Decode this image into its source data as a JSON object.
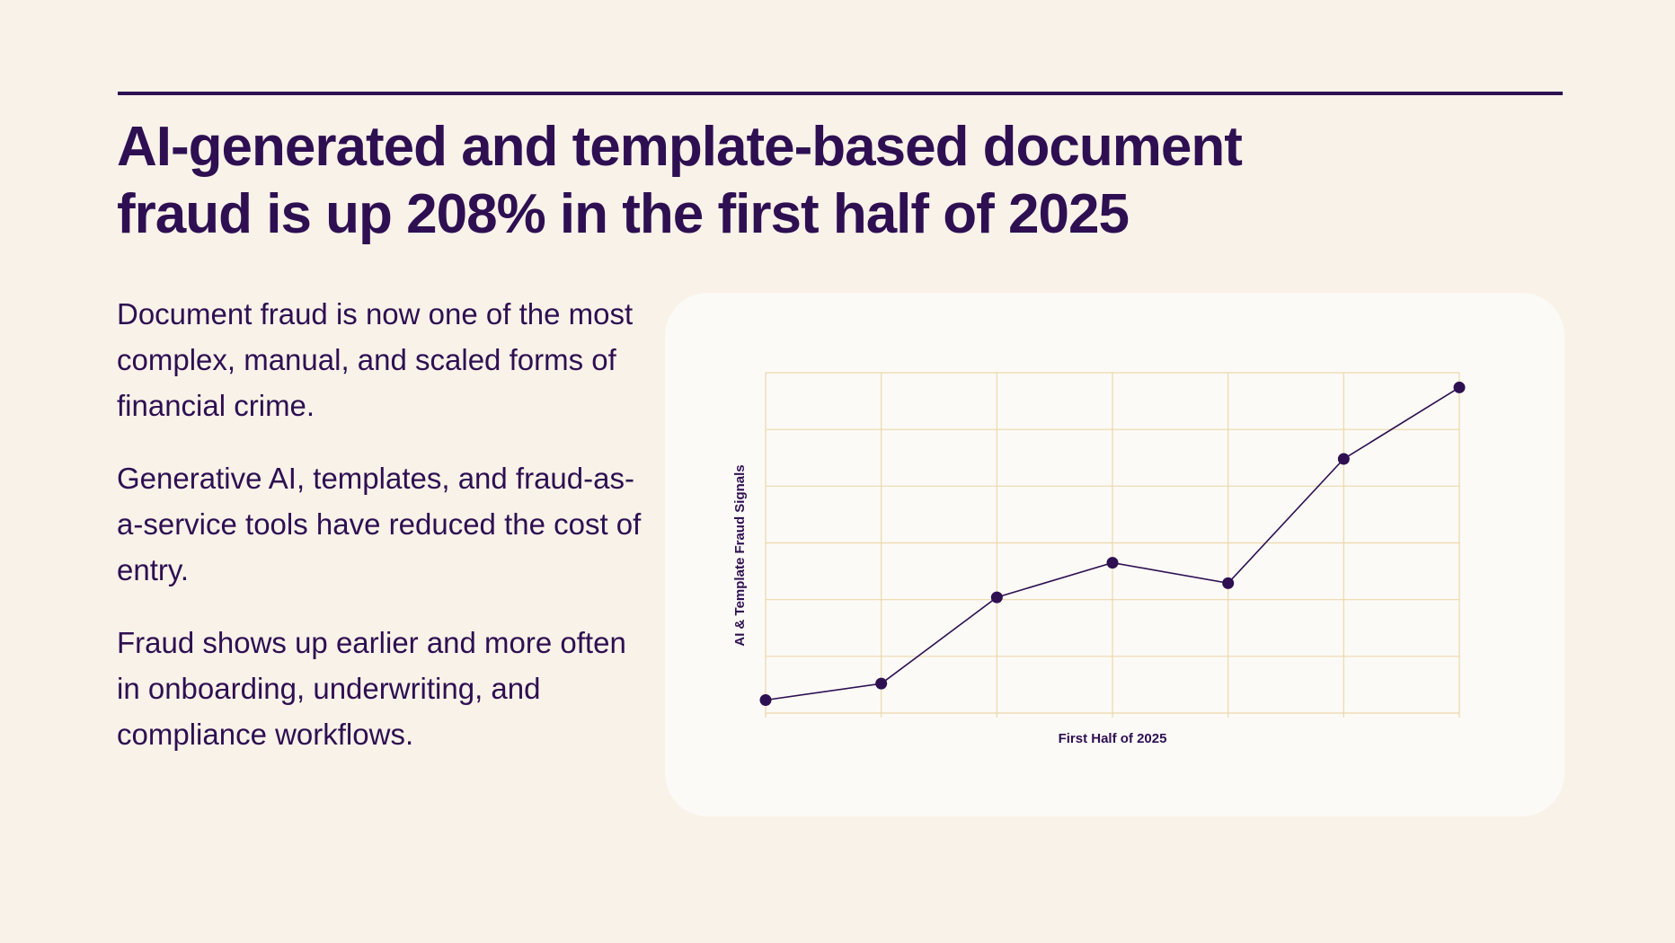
{
  "headline": {
    "line1": "AI-generated and template-based document",
    "line2": "fraud is up 208% in the first half of 2025"
  },
  "paragraphs": [
    "Document fraud is now one of the most complex, manual, and scaled forms of financial crime.",
    "Generative AI, templates, and fraud-as-a-service tools have reduced the cost of entry.",
    "Fraud shows up earlier and more often in onboarding, underwriting, and compliance workflows."
  ],
  "colors": {
    "background": "#f9f2e8",
    "card": "#fcfaf6",
    "ink": "#2e0f52",
    "grid": "#ecd7ab"
  },
  "chart_data": {
    "type": "line",
    "title": "",
    "xlabel": "First Half of 2025",
    "ylabel": "AI & Template Fraud Signals",
    "x": [
      0,
      1,
      2,
      3,
      4,
      5,
      6
    ],
    "values": [
      2.3,
      5.2,
      20.4,
      26.5,
      22.9,
      44.8,
      57.4
    ],
    "xlim": [
      0,
      6
    ],
    "ylim": [
      0,
      60
    ],
    "grid": true,
    "show_tick_labels": false,
    "legend": "none"
  }
}
